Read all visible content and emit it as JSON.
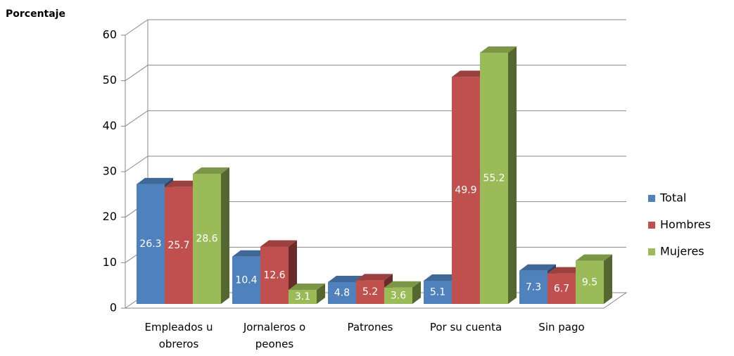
{
  "chart_data": {
    "type": "bar3d",
    "y_label": "Porcentaje",
    "categories": [
      "Empleados u obreros",
      "Jornaleros o peones",
      "Patrones",
      "Por su cuenta",
      "Sin pago"
    ],
    "series": [
      {
        "name": "Total",
        "color": "#4f81bd",
        "values": [
          26.3,
          10.4,
          4.8,
          5.1,
          7.3
        ]
      },
      {
        "name": "Hombres",
        "color": "#c0504d",
        "values": [
          25.7,
          12.6,
          5.2,
          49.9,
          6.7
        ]
      },
      {
        "name": "Mujeres",
        "color": "#9bbb59",
        "values": [
          28.6,
          3.1,
          3.6,
          55.2,
          9.5
        ]
      }
    ],
    "ylim": [
      0,
      60
    ],
    "yticks": [
      0,
      10,
      20,
      30,
      40,
      50,
      60
    ],
    "grid": true,
    "legend": "right"
  }
}
